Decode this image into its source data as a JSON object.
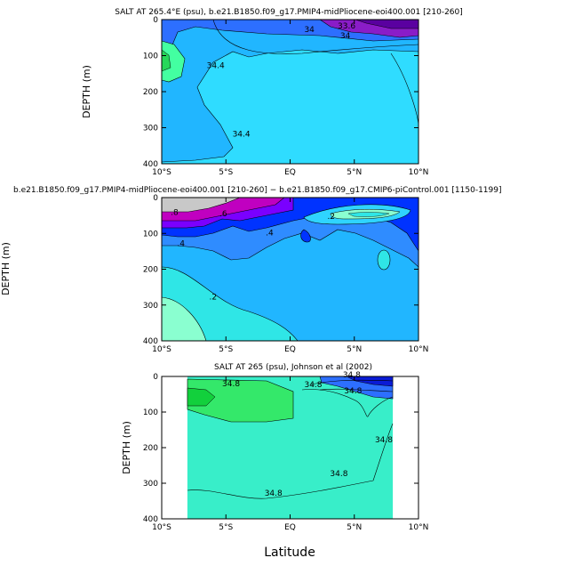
{
  "figure": {
    "xlabel": "Latitude"
  },
  "chart_data": [
    {
      "type": "heatmap",
      "title": "SALT AT 265.4°E (psu), b.e21.B1850.f09_g17.PMIP4-midPliocene-eoi400.001 [210-260]",
      "ylabel": "DEPTH (m)",
      "xlabel": "",
      "xlim": [
        -10,
        10
      ],
      "ylim": [
        400,
        0
      ],
      "x_ticks": [
        "10°S",
        "5°S",
        "EQ",
        "5°N",
        "10°N"
      ],
      "y_ticks": [
        "0",
        "100",
        "200",
        "300",
        "400"
      ],
      "contour_labels": [
        {
          "text": "34",
          "x": 1.5,
          "y": 35
        },
        {
          "text": "34.4",
          "x": -5.8,
          "y": 135
        },
        {
          "text": "34.4",
          "x": -3.8,
          "y": 325
        },
        {
          "text": "33.6",
          "x": 4.4,
          "y": 25
        },
        {
          "text": "34",
          "x": 4.3,
          "y": 52
        }
      ],
      "colors": {
        "surface": "#8a1cc8",
        "low": "#2d6fff",
        "mid": "#21b6ff",
        "base": "#2fdcff",
        "high": "#43ffa1"
      }
    },
    {
      "type": "heatmap",
      "title": "b.e21.B1850.f09_g17.PMIP4-midPliocene-eoi400.001 [210-260] − b.e21.B1850.f09_g17.CMIP6-piControl.001 [1150-1199]",
      "ylabel": "DEPTH (m)",
      "xlabel": "",
      "xlim": [
        -10,
        10
      ],
      "ylim": [
        400,
        0
      ],
      "x_ticks": [
        "10°S",
        "5°S",
        "EQ",
        "5°N",
        "10°N"
      ],
      "y_ticks": [
        "0",
        "100",
        "200",
        "300",
        "400"
      ],
      "contour_labels": [
        {
          "text": ".8",
          "x": -9.0,
          "y": 48
        },
        {
          "text": ".6",
          "x": -5.2,
          "y": 52
        },
        {
          "text": ".4",
          "x": -1.6,
          "y": 105
        },
        {
          "text": ".4",
          "x": -8.5,
          "y": 135
        },
        {
          "text": ".2",
          "x": -6.0,
          "y": 285
        },
        {
          "text": ".2",
          "x": 3.2,
          "y": 60
        }
      ],
      "colors": {
        "surface": "#c8c8c8",
        "pos_high": "#c000c0",
        "pos_mid": "#7a00ff",
        "pos_low": "#0033ff",
        "pos_lower": "#2f8cff",
        "base": "#21b6ff",
        "low": "#2fe6e6",
        "neg": "#8affd0"
      }
    },
    {
      "type": "heatmap",
      "title": "SALT AT 265 (psu), Johnson et al (2002)",
      "ylabel": "DEPTH (m)",
      "xlabel": "",
      "xlim": [
        -10,
        10
      ],
      "ylim": [
        400,
        0
      ],
      "x_ticks": [
        "10°S",
        "5°S",
        "EQ",
        "5°N",
        "10°N"
      ],
      "y_ticks": [
        "0",
        "100",
        "200",
        "300",
        "400"
      ],
      "data_extent_lat": [
        -8,
        8
      ],
      "contour_labels": [
        {
          "text": "34.8",
          "x": -4.6,
          "y": 28
        },
        {
          "text": "34.8",
          "x": 1.8,
          "y": 30
        },
        {
          "text": "34.8",
          "x": 4.8,
          "y": 2
        },
        {
          "text": "34.8",
          "x": 4.9,
          "y": 48
        },
        {
          "text": "34.8",
          "x": 7.3,
          "y": 185
        },
        {
          "text": "34.8",
          "x": 3.8,
          "y": 280
        },
        {
          "text": "34.8",
          "x": -1.3,
          "y": 335
        }
      ],
      "colors": {
        "surface": "#0a1bd6",
        "low": "#2d6fff",
        "base": "#38eec9",
        "high": "#34e86a"
      }
    }
  ]
}
